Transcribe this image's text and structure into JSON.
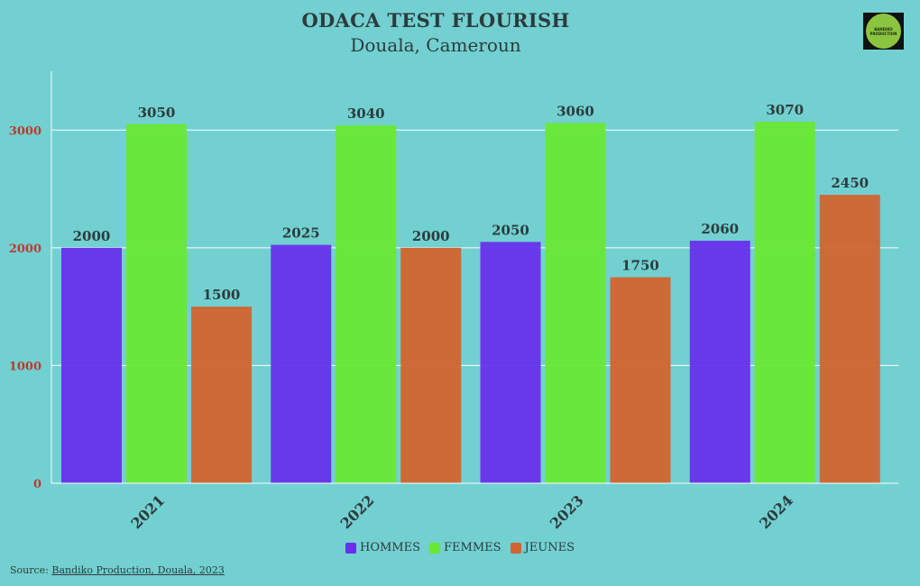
{
  "title": "ODACA TEST FLOURISH",
  "subtitle": "Douala, Cameroun",
  "logo": {
    "text": "BANDIKO PRODUCTION"
  },
  "source": {
    "label": "Source:",
    "link_text": "Bandiko Production, Douala, 2023"
  },
  "colors": {
    "hommes": "#6730ec",
    "femmes": "#68e833",
    "jeunes": "#d2642f",
    "tick_red": "#c0392b"
  },
  "chart_data": {
    "type": "bar",
    "categories": [
      "2021",
      "2022",
      "2023",
      "2024"
    ],
    "series": [
      {
        "name": "HOMMES",
        "values": [
          2000,
          2025,
          2050,
          2060
        ]
      },
      {
        "name": "FEMMES",
        "values": [
          3050,
          3040,
          3060,
          3070
        ]
      },
      {
        "name": "JEUNES",
        "values": [
          1500,
          2000,
          1750,
          2450
        ]
      }
    ],
    "ylim": [
      0,
      3500
    ],
    "yticks": [
      0,
      1000,
      2000,
      3000
    ],
    "grid": true,
    "legend_position": "bottom-center"
  }
}
